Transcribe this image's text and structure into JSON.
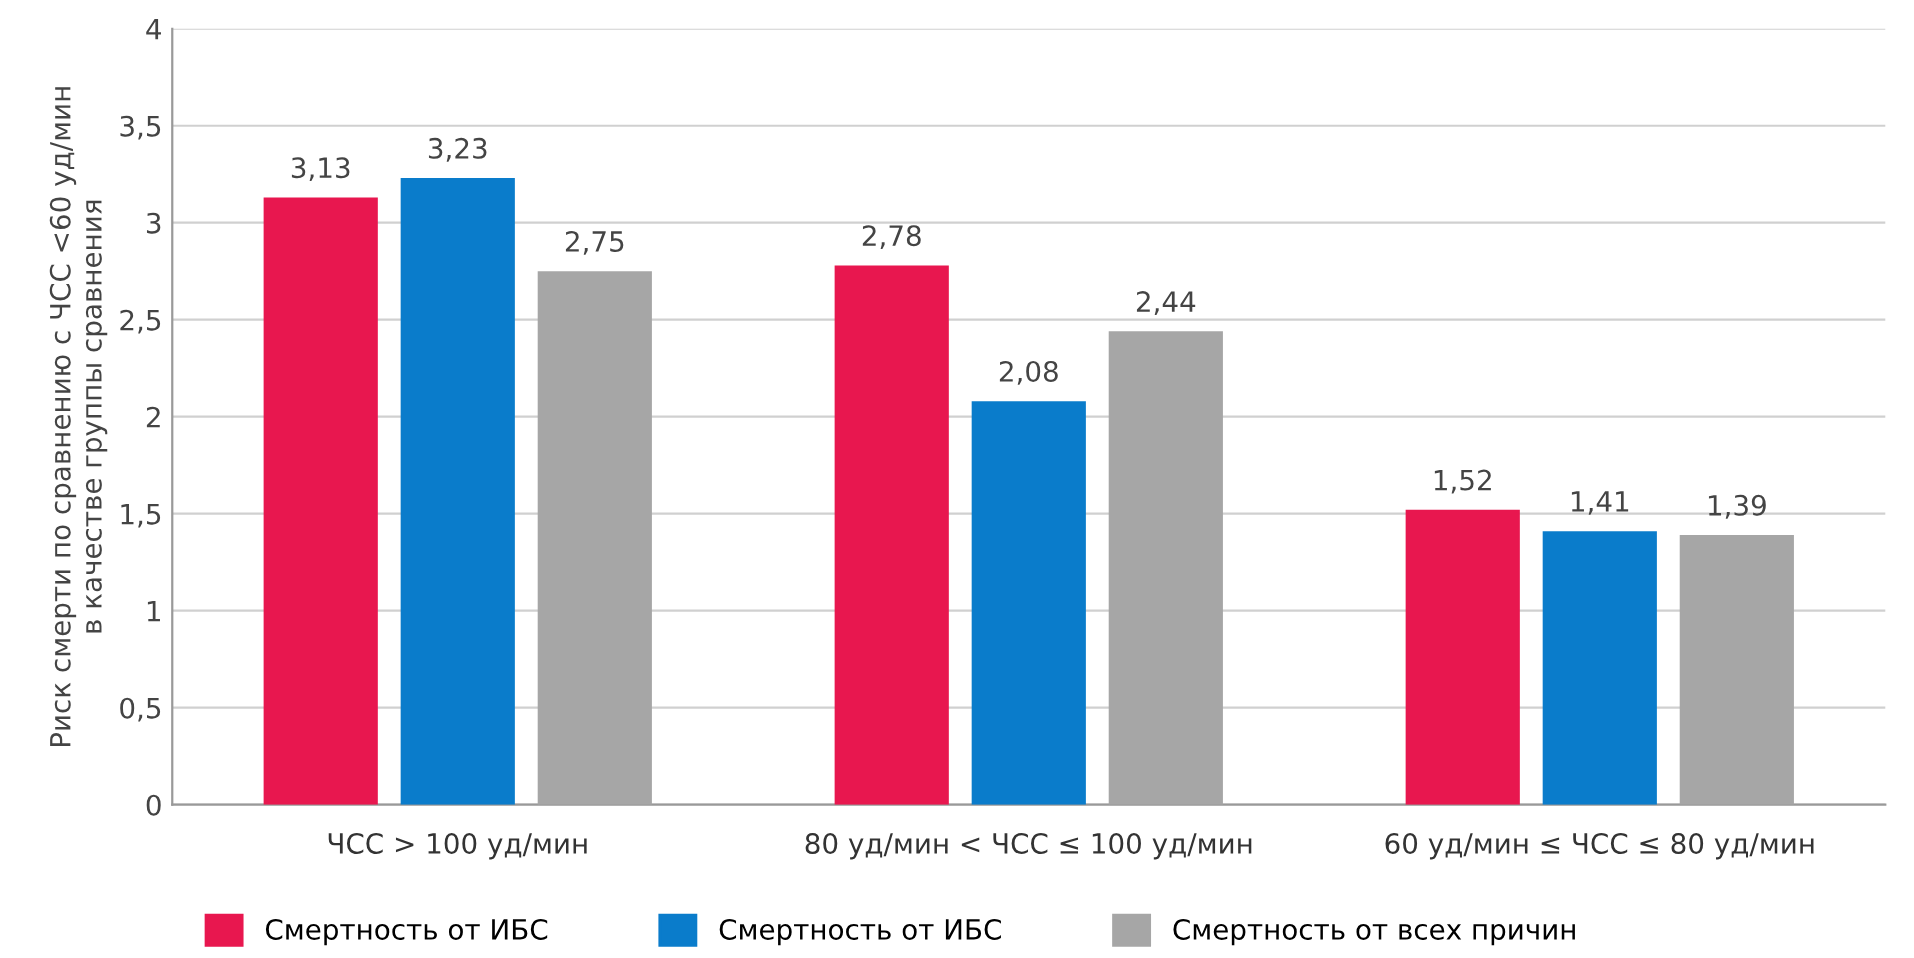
{
  "chart_data": {
    "type": "bar",
    "ylabel": "Риск смерти по сравнению с ЧСС <60 уд/мин\nв качестве группы сравнения",
    "categories": [
      "ЧСС > 100 уд/мин",
      "80 уд/мин < ЧСС ≤ 100 уд/мин",
      "60 уд/мин ≤ ЧСС ≤ 80 уд/мин"
    ],
    "series": [
      {
        "name": "Смертность от ИБС",
        "color": "#e8174f",
        "values": [
          3.13,
          2.78,
          1.52
        ],
        "value_labels": [
          "3,13",
          "2,78",
          "1,52"
        ]
      },
      {
        "name": "Смертность от ИБС",
        "color": "#0a7ccb",
        "values": [
          3.23,
          2.08,
          1.41
        ],
        "value_labels": [
          "3,23",
          "2,08",
          "1,41"
        ]
      },
      {
        "name": "Смертность от всех причин",
        "color": "#a6a6a6",
        "values": [
          2.75,
          2.44,
          1.39
        ],
        "value_labels": [
          "2,75",
          "2,44",
          "1,39"
        ]
      }
    ],
    "ylim": [
      0,
      4
    ],
    "yticks": [
      0,
      {
        "value": 0.5,
        "label": "0,5"
      },
      1,
      {
        "value": 1.5,
        "label": "1,5"
      },
      2,
      {
        "value": 2.5,
        "label": "2,5"
      },
      3,
      {
        "value": 3.5,
        "label": "3,5"
      },
      4
    ],
    "grid": "y",
    "legend": "bottom"
  }
}
